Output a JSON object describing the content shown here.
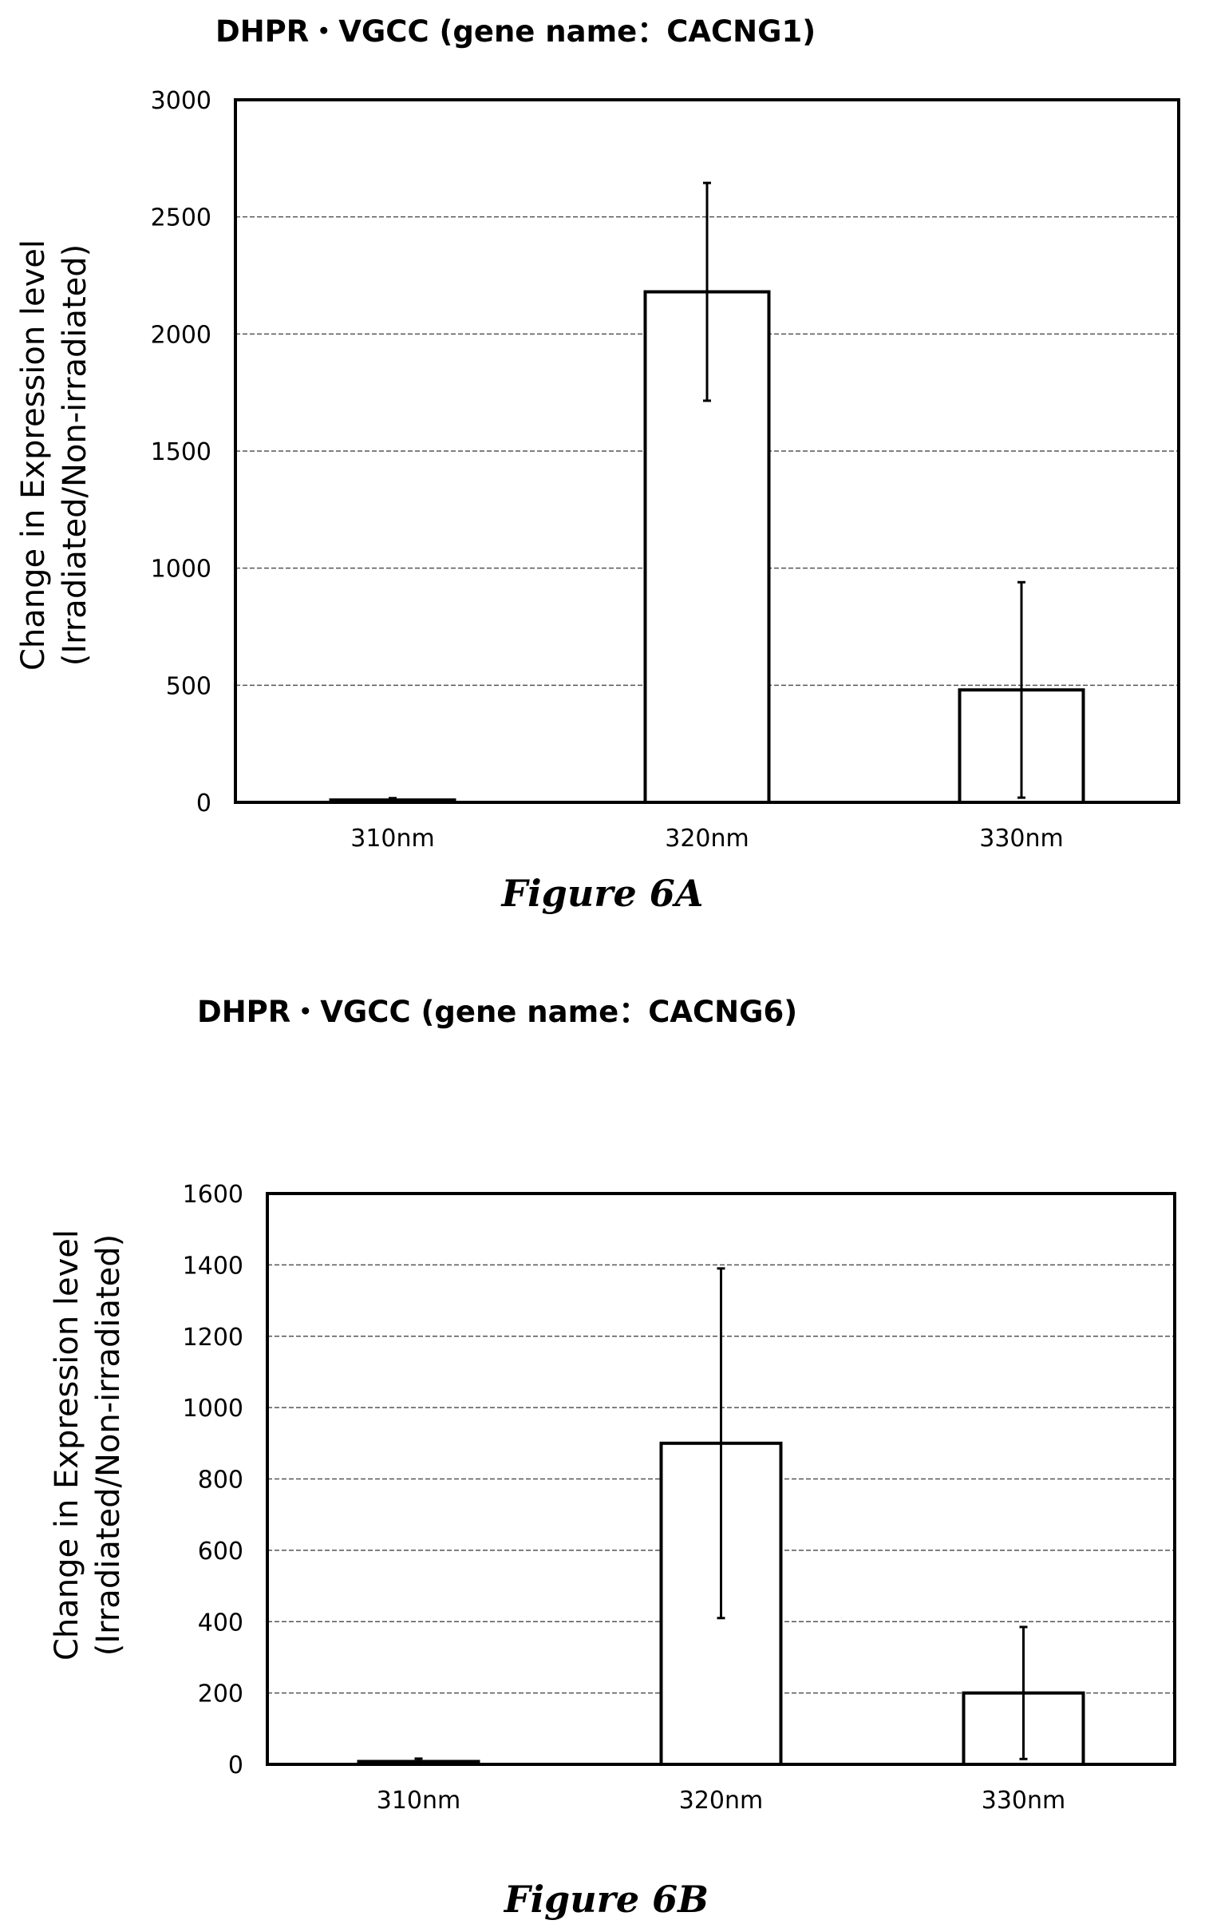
{
  "chart_data": [
    {
      "type": "bar",
      "title": "DHPR・VGCC (gene name：CACNG1)",
      "caption": "Figure 6A",
      "ylabel_lines": [
        "Change in Expression level",
        "(Irradiated/Non-irradiated)"
      ],
      "categories": [
        "310nm",
        "320nm",
        "330nm"
      ],
      "values": [
        10,
        2180,
        480
      ],
      "errors": [
        8,
        465,
        460
      ],
      "ylim": [
        0,
        3000
      ],
      "yticks": [
        0,
        500,
        1000,
        1500,
        2000,
        2500,
        3000
      ],
      "grid": true
    },
    {
      "type": "bar",
      "title": "DHPR・VGCC (gene name：CACNG6)",
      "caption": "Figure 6B",
      "ylabel_lines": [
        "Change in Expression level",
        "(Irradiated/Non-irradiated)"
      ],
      "categories": [
        "310nm",
        "320nm",
        "330nm"
      ],
      "values": [
        8,
        900,
        200
      ],
      "errors": [
        8,
        490,
        185
      ],
      "ylim": [
        0,
        1600
      ],
      "yticks": [
        0,
        200,
        400,
        600,
        800,
        1000,
        1200,
        1400,
        1600
      ],
      "grid": true
    }
  ]
}
